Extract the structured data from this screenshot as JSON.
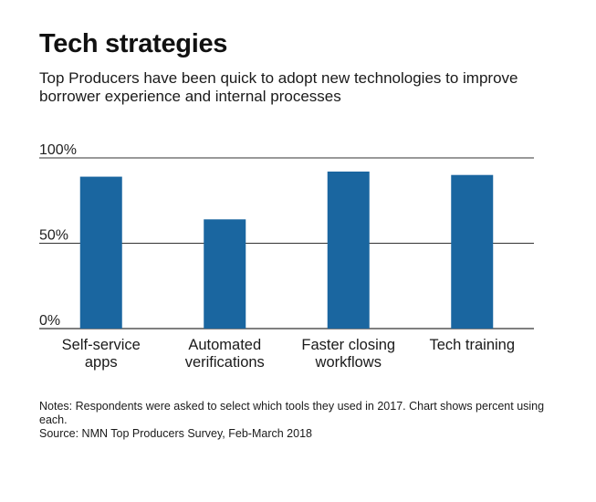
{
  "title": "Tech strategies",
  "subtitle": "Top Producers have been quick to adopt new technologies to improve borrower experience and internal processes",
  "chart_data": {
    "type": "bar",
    "categories": [
      [
        "Self-service",
        "apps"
      ],
      [
        "Automated",
        "verifications"
      ],
      [
        "Faster closing",
        "workflows"
      ],
      [
        "Tech training"
      ]
    ],
    "values": [
      89,
      64,
      92,
      90
    ],
    "ylim": [
      0,
      100
    ],
    "yticks": [
      0,
      50,
      100
    ],
    "ytick_labels": [
      "0%",
      "50%",
      "100%"
    ],
    "grid": true,
    "xlabel": "",
    "ylabel": "",
    "bar_color": "#1a66a0",
    "grid_color": "#333333"
  },
  "notes": {
    "line1": "Notes: Respondents were asked to select which tools they used in 2017. Chart shows percent using each.",
    "line2": "Source: NMN Top Producers Survey, Feb-March 2018"
  }
}
